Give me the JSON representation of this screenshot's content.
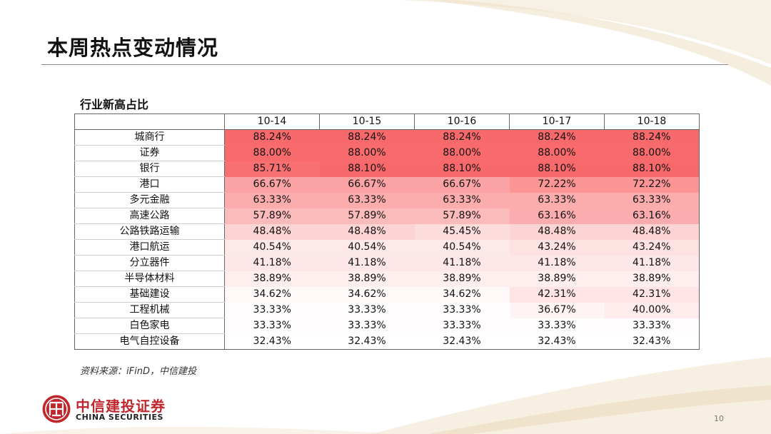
{
  "page": {
    "title": "本周热点变动情况",
    "page_number": "10"
  },
  "table": {
    "caption": "行业新高占比",
    "columns": [
      "10-14",
      "10-15",
      "10-16",
      "10-17",
      "10-18"
    ],
    "rows": [
      {
        "name": "城商行",
        "values": [
          "88.24%",
          "88.24%",
          "88.24%",
          "88.24%",
          "88.24%"
        ]
      },
      {
        "name": "证券",
        "values": [
          "88.00%",
          "88.00%",
          "88.00%",
          "88.00%",
          "88.00%"
        ]
      },
      {
        "name": "银行",
        "values": [
          "85.71%",
          "88.10%",
          "88.10%",
          "88.10%",
          "88.10%"
        ]
      },
      {
        "name": "港口",
        "values": [
          "66.67%",
          "66.67%",
          "66.67%",
          "72.22%",
          "72.22%"
        ]
      },
      {
        "name": "多元金融",
        "values": [
          "63.33%",
          "63.33%",
          "63.33%",
          "63.33%",
          "63.33%"
        ]
      },
      {
        "name": "高速公路",
        "values": [
          "57.89%",
          "57.89%",
          "57.89%",
          "63.16%",
          "63.16%"
        ]
      },
      {
        "name": "公路铁路运输",
        "values": [
          "48.48%",
          "48.48%",
          "45.45%",
          "48.48%",
          "48.48%"
        ]
      },
      {
        "name": "港口航运",
        "values": [
          "40.54%",
          "40.54%",
          "40.54%",
          "43.24%",
          "43.24%"
        ]
      },
      {
        "name": "分立器件",
        "values": [
          "41.18%",
          "41.18%",
          "41.18%",
          "41.18%",
          "41.18%"
        ]
      },
      {
        "name": "半导体材料",
        "values": [
          "38.89%",
          "38.89%",
          "38.89%",
          "38.89%",
          "38.89%"
        ]
      },
      {
        "name": "基础建设",
        "values": [
          "34.62%",
          "34.62%",
          "34.62%",
          "42.31%",
          "42.31%"
        ]
      },
      {
        "name": "工程机械",
        "values": [
          "33.33%",
          "33.33%",
          "33.33%",
          "36.67%",
          "40.00%"
        ]
      },
      {
        "name": "白色家电",
        "values": [
          "33.33%",
          "33.33%",
          "33.33%",
          "33.33%",
          "33.33%"
        ]
      },
      {
        "name": "电气自控设备",
        "values": [
          "32.43%",
          "32.43%",
          "32.43%",
          "32.43%",
          "32.43%"
        ]
      }
    ],
    "heat_colors": {
      "low": "#ffffff",
      "high": "#f8696b"
    }
  },
  "source_note": "资料来源：iFinD，中信建投",
  "logo": {
    "name_cn": "中信建投证券",
    "name_en": "CHINA SECURITIES",
    "icon": "citic-logo-icon",
    "brand_color": "#c0272d"
  }
}
